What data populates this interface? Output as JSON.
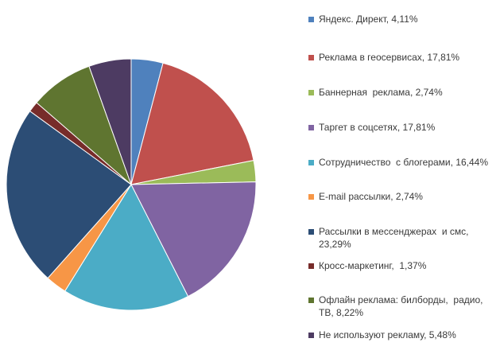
{
  "chart_data": {
    "type": "pie",
    "start_angle_deg": 0,
    "direction": "clockwise",
    "slices": [
      {
        "label": "Яндекс. Директ, 4,11%",
        "value": 4.11,
        "color": "#4f81bd"
      },
      {
        "label": "Реклама в геосервисах, 17,81%",
        "value": 17.81,
        "color": "#c0504d"
      },
      {
        "label": "Баннерная  реклама, 2,74%",
        "value": 2.74,
        "color": "#9bbb59"
      },
      {
        "label": "Таргет в соцсетях, 17,81%",
        "value": 17.81,
        "color": "#8064a2"
      },
      {
        "label": "Сотрудничество  с блогерами, 16,44%",
        "value": 16.44,
        "color": "#4bacc6"
      },
      {
        "label": "E-mail рассылки, 2,74%",
        "value": 2.74,
        "color": "#f79646"
      },
      {
        "label": "Рассылки в мессенджерах  и смс,\n23,29%",
        "value": 23.29,
        "color": "#2c4d75"
      },
      {
        "label": "Кросс-маркетинг,  1,37%",
        "value": 1.37,
        "color": "#772c2a"
      },
      {
        "label": "Офлайн реклама: билборды,  радио,\nТВ, 8,22%",
        "value": 8.22,
        "color": "#5f7530"
      },
      {
        "label": "Не используют рекламу, 5,48%",
        "value": 5.48,
        "color": "#4d3b62"
      }
    ]
  }
}
